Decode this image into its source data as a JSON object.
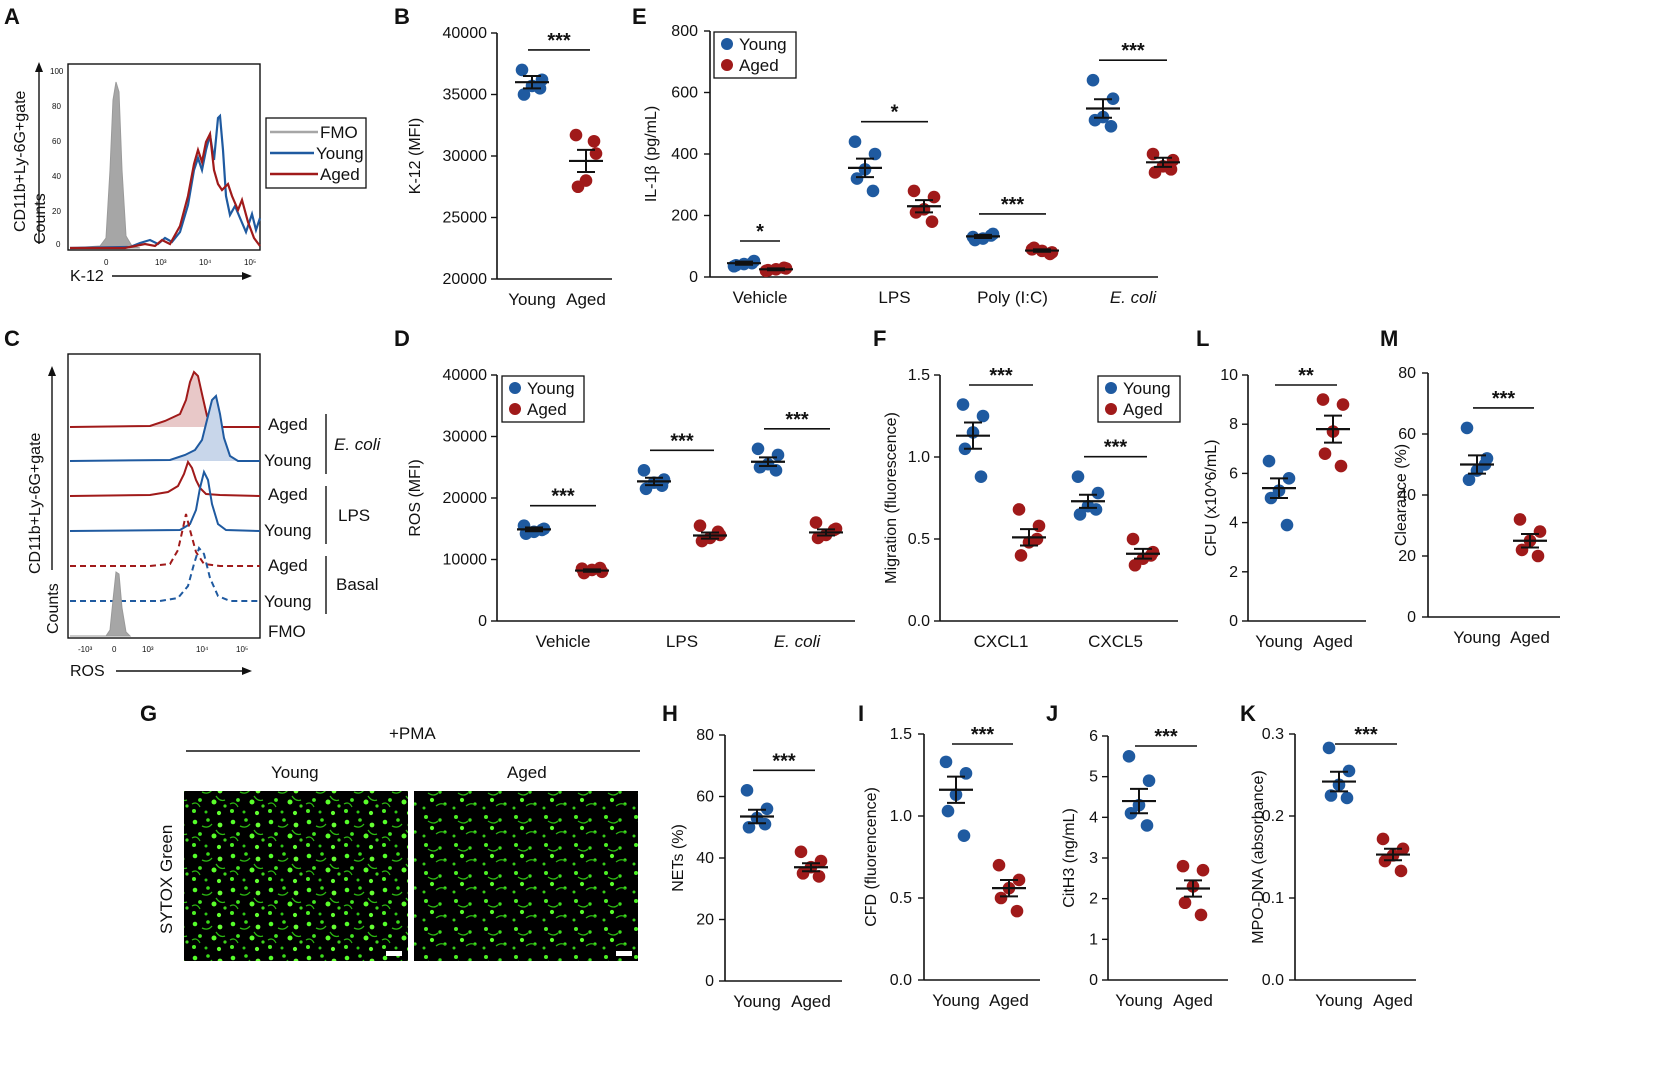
{
  "colors": {
    "young": "#1f5aa0",
    "aged": "#a01a1a",
    "fmo": "#a6a6a6"
  },
  "panels": {
    "A": {
      "letter": "A",
      "ylabel1": "CD11b+Ly-6G+gate",
      "ylabel2": "Counts",
      "xlabel": "K-12",
      "yticks": [
        "100",
        "80",
        "60",
        "40",
        "20",
        "0"
      ],
      "xticks": [
        "0",
        "10³",
        "10⁴",
        "10⁵"
      ],
      "legend": [
        "FMO",
        "Young",
        "Aged"
      ]
    },
    "B": {
      "letter": "B"
    },
    "C": {
      "letter": "C",
      "ylabel1": "CD11b+Ly-6G+gate",
      "ylabel2": "Counts",
      "xlabel": "ROS",
      "xticks": [
        "-10³",
        "0",
        "10³",
        "10⁴",
        "10⁵"
      ],
      "rows": [
        "Aged",
        "Young",
        "Aged",
        "Young",
        "Aged",
        "Young",
        "FMO"
      ],
      "groups": [
        "E. coli",
        "LPS",
        "Basal"
      ]
    },
    "D": {
      "letter": "D"
    },
    "E": {
      "letter": "E"
    },
    "F": {
      "letter": "F"
    },
    "G": {
      "letter": "G",
      "treatment": "+PMA",
      "col1": "Young",
      "col2": "Aged",
      "stain": "SYTOX Green"
    },
    "H": {
      "letter": "H"
    },
    "I": {
      "letter": "I"
    },
    "J": {
      "letter": "J"
    },
    "K": {
      "letter": "K"
    },
    "L": {
      "letter": "L"
    },
    "M": {
      "letter": "M"
    }
  },
  "chart_data": [
    {
      "id": "B",
      "type": "scatter",
      "ylabel": "K-12 (MFI)",
      "ylim": [
        20000,
        40000
      ],
      "yticks": [
        20000,
        25000,
        30000,
        35000,
        40000
      ],
      "categories": [
        "Young",
        "Aged"
      ],
      "series": [
        {
          "name": "Young",
          "values": [
            37000,
            36200,
            35700,
            35000,
            35500
          ],
          "mean": 36000,
          "sem": 500
        },
        {
          "name": "Aged",
          "values": [
            31700,
            30200,
            28000,
            27500,
            31200
          ],
          "mean": 29600,
          "sem": 900
        }
      ],
      "annotations": [
        {
          "groups": [
            0,
            1
          ],
          "text": "***"
        }
      ]
    },
    {
      "id": "E",
      "type": "scatter",
      "ylabel": "IL-1β (pg/mL)",
      "ylim": [
        0,
        800
      ],
      "yticks": [
        0,
        200,
        400,
        600,
        800
      ],
      "categories": [
        "Vehicle",
        "LPS",
        "Poly (I:C)",
        "E. coli"
      ],
      "legend": [
        "Young",
        "Aged"
      ],
      "series": [
        {
          "name": "Young",
          "values": [
            [
              35,
              52,
              42,
              38,
              45
            ],
            [
              440,
              400,
              350,
              320,
              280
            ],
            [
              130,
              140,
              125,
              120,
              135
            ],
            [
              640,
              580,
              520,
              510,
              490
            ]
          ],
          "mean": [
            45,
            355,
            132,
            548
          ],
          "sem": [
            5,
            30,
            5,
            30
          ]
        },
        {
          "name": "Aged",
          "values": [
            [
              20,
              28,
              25,
              22,
              30
            ],
            [
              280,
              260,
              220,
              210,
              180
            ],
            [
              90,
              80,
              85,
              95,
              75
            ],
            [
              400,
              380,
              360,
              340,
              350
            ]
          ],
          "mean": [
            25,
            230,
            86,
            373
          ],
          "sem": [
            3,
            20,
            4,
            15
          ]
        }
      ],
      "annotations": [
        {
          "category": "Vehicle",
          "text": "*"
        },
        {
          "category": "LPS",
          "text": "*"
        },
        {
          "category": "Poly (I:C)",
          "text": "***"
        },
        {
          "category": "E. coli",
          "text": "***"
        }
      ]
    },
    {
      "id": "D",
      "type": "scatter",
      "ylabel": "ROS (MFI)",
      "ylim": [
        0,
        40000
      ],
      "yticks": [
        0,
        10000,
        20000,
        30000,
        40000
      ],
      "categories": [
        "Vehicle",
        "LPS",
        "E. coli"
      ],
      "legend": [
        "Young",
        "Aged"
      ],
      "series": [
        {
          "name": "Young",
          "values": [
            [
              15500,
              15000,
              14500,
              14200,
              14800
            ],
            [
              24500,
              23000,
              22500,
              21500,
              22000
            ],
            [
              28000,
              27000,
              25500,
              25000,
              24500
            ]
          ],
          "mean": [
            14900,
            22700,
            25900
          ],
          "sem": [
            300,
            600,
            700
          ]
        },
        {
          "name": "Aged",
          "values": [
            [
              8500,
              8000,
              8300,
              7800,
              8600
            ],
            [
              15500,
              14000,
              13500,
              13000,
              14500
            ],
            [
              16000,
              15000,
              14000,
              13500,
              14800
            ]
          ],
          "mean": [
            8200,
            13900,
            14400
          ],
          "sem": [
            200,
            500,
            500
          ]
        }
      ],
      "annotations": [
        {
          "category": "Vehicle",
          "text": "***"
        },
        {
          "category": "LPS",
          "text": "***"
        },
        {
          "category": "E. coli",
          "text": "***"
        }
      ]
    },
    {
      "id": "F",
      "type": "scatter",
      "ylabel": "Migration (fluorescence)",
      "ylim": [
        0,
        1.5
      ],
      "yticks": [
        0.0,
        0.5,
        1.0,
        1.5
      ],
      "categories": [
        "CXCL1",
        "CXCL5"
      ],
      "legend": [
        "Young",
        "Aged"
      ],
      "series": [
        {
          "name": "Young",
          "values": [
            [
              1.32,
              1.25,
              1.15,
              1.05,
              0.88
            ],
            [
              0.88,
              0.78,
              0.7,
              0.65,
              0.68
            ]
          ],
          "mean": [
            1.13,
            0.73
          ],
          "sem": [
            0.08,
            0.04
          ]
        },
        {
          "name": "Aged",
          "values": [
            [
              0.68,
              0.58,
              0.48,
              0.4,
              0.5
            ],
            [
              0.5,
              0.42,
              0.38,
              0.34,
              0.4
            ]
          ],
          "mean": [
            0.51,
            0.41
          ],
          "sem": [
            0.05,
            0.03
          ]
        }
      ],
      "annotations": [
        {
          "category": "CXCL1",
          "text": "***"
        },
        {
          "category": "CXCL5",
          "text": "***"
        }
      ]
    },
    {
      "id": "L",
      "type": "scatter",
      "ylabel": "CFU (x10^6/mL)",
      "ylim": [
        0,
        10
      ],
      "yticks": [
        0,
        2,
        4,
        6,
        8,
        10
      ],
      "categories": [
        "Young",
        "Aged"
      ],
      "series": [
        {
          "name": "Young",
          "values": [
            6.5,
            5.8,
            5.3,
            5.0,
            3.9
          ],
          "mean": 5.4,
          "sem": 0.4
        },
        {
          "name": "Aged",
          "values": [
            9.0,
            8.8,
            7.7,
            6.8,
            6.3
          ],
          "mean": 7.8,
          "sem": 0.55
        }
      ],
      "annotations": [
        {
          "groups": [
            0,
            1
          ],
          "text": "**"
        }
      ]
    },
    {
      "id": "M",
      "type": "scatter",
      "ylabel": "Clearance (%)",
      "ylim": [
        0,
        80
      ],
      "yticks": [
        0,
        20,
        40,
        60,
        80
      ],
      "categories": [
        "Young",
        "Aged"
      ],
      "series": [
        {
          "name": "Young",
          "values": [
            62,
            52,
            48,
            45,
            50
          ],
          "mean": 50,
          "sem": 3
        },
        {
          "name": "Aged",
          "values": [
            32,
            28,
            25,
            22,
            20
          ],
          "mean": 25,
          "sem": 2.2
        }
      ],
      "annotations": [
        {
          "groups": [
            0,
            1
          ],
          "text": "***"
        }
      ]
    },
    {
      "id": "H",
      "type": "scatter",
      "ylabel": "NETs (%)",
      "ylim": [
        0,
        80
      ],
      "yticks": [
        0,
        20,
        40,
        60,
        80
      ],
      "categories": [
        "Young",
        "Aged"
      ],
      "series": [
        {
          "name": "Young",
          "values": [
            62,
            56,
            53,
            50,
            51
          ],
          "mean": 53.5,
          "sem": 2.2
        },
        {
          "name": "Aged",
          "values": [
            42,
            39,
            37,
            35,
            34
          ],
          "mean": 37,
          "sem": 1.3
        }
      ],
      "annotations": [
        {
          "groups": [
            0,
            1
          ],
          "text": "***"
        }
      ]
    },
    {
      "id": "I",
      "type": "scatter",
      "ylabel": "CFD (fluorencence)",
      "ylim": [
        0,
        1.5
      ],
      "yticks": [
        0.0,
        0.5,
        1.0,
        1.5
      ],
      "categories": [
        "Young",
        "Aged"
      ],
      "series": [
        {
          "name": "Young",
          "values": [
            1.33,
            1.26,
            1.13,
            1.03,
            0.88
          ],
          "mean": 1.16,
          "sem": 0.08
        },
        {
          "name": "Aged",
          "values": [
            0.7,
            0.61,
            0.56,
            0.5,
            0.42
          ],
          "mean": 0.56,
          "sem": 0.05
        }
      ],
      "annotations": [
        {
          "groups": [
            0,
            1
          ],
          "text": "***"
        }
      ]
    },
    {
      "id": "J",
      "type": "scatter",
      "ylabel": "CitH3 (ng/mL)",
      "ylim": [
        0,
        6
      ],
      "yticks": [
        0,
        1,
        2,
        3,
        4,
        5,
        6
      ],
      "categories": [
        "Young",
        "Aged"
      ],
      "series": [
        {
          "name": "Young",
          "values": [
            5.5,
            4.9,
            4.3,
            4.1,
            3.8
          ],
          "mean": 4.4,
          "sem": 0.3
        },
        {
          "name": "Aged",
          "values": [
            2.8,
            2.7,
            2.3,
            1.9,
            1.6
          ],
          "mean": 2.25,
          "sem": 0.2
        }
      ],
      "annotations": [
        {
          "groups": [
            0,
            1
          ],
          "text": "***"
        }
      ]
    },
    {
      "id": "K",
      "type": "scatter",
      "ylabel": "MPO-DNA (absorbance)",
      "ylim": [
        0,
        0.3
      ],
      "yticks": [
        0.0,
        0.1,
        0.2,
        0.3
      ],
      "categories": [
        "Young",
        "Aged"
      ],
      "series": [
        {
          "name": "Young",
          "values": [
            0.283,
            0.255,
            0.238,
            0.225,
            0.222
          ],
          "mean": 0.242,
          "sem": 0.012
        },
        {
          "name": "Aged",
          "values": [
            0.172,
            0.16,
            0.152,
            0.145,
            0.133
          ],
          "mean": 0.153,
          "sem": 0.007
        }
      ],
      "annotations": [
        {
          "groups": [
            0,
            1
          ],
          "text": "***"
        }
      ]
    }
  ]
}
